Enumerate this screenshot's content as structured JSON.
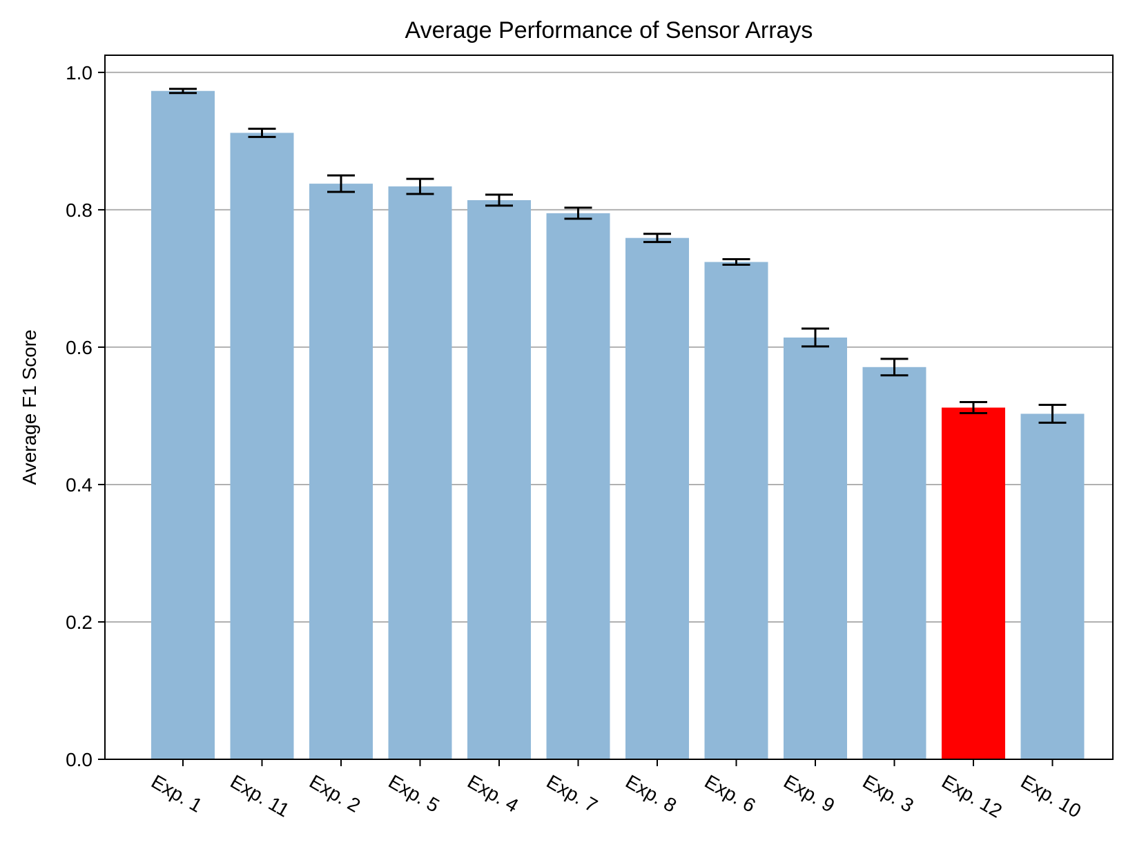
{
  "chart_data": {
    "type": "bar",
    "title": "Average Performance of Sensor Arrays",
    "xlabel": "",
    "ylabel": "Average F1 Score",
    "categories": [
      "Exp. 1",
      "Exp. 11",
      "Exp. 2",
      "Exp. 5",
      "Exp. 4",
      "Exp. 7",
      "Exp. 8",
      "Exp. 6",
      "Exp. 9",
      "Exp. 3",
      "Exp. 12",
      "Exp. 10"
    ],
    "values": [
      0.973,
      0.912,
      0.838,
      0.834,
      0.814,
      0.795,
      0.759,
      0.724,
      0.614,
      0.571,
      0.512,
      0.503
    ],
    "errors": [
      0.003,
      0.006,
      0.012,
      0.011,
      0.008,
      0.008,
      0.006,
      0.004,
      0.013,
      0.012,
      0.008,
      0.013
    ],
    "highlight_index": 10,
    "ylim": [
      0,
      1.025
    ],
    "yticks": [
      "0.0",
      "0.2",
      "0.4",
      "0.6",
      "0.8",
      "1.0"
    ],
    "grid": "horizontal",
    "colors": {
      "bar": "#90b8d8",
      "highlight": "#ff0000",
      "error_bar": "#000000",
      "grid": "#b0b0b0",
      "axes": "#000000"
    }
  }
}
